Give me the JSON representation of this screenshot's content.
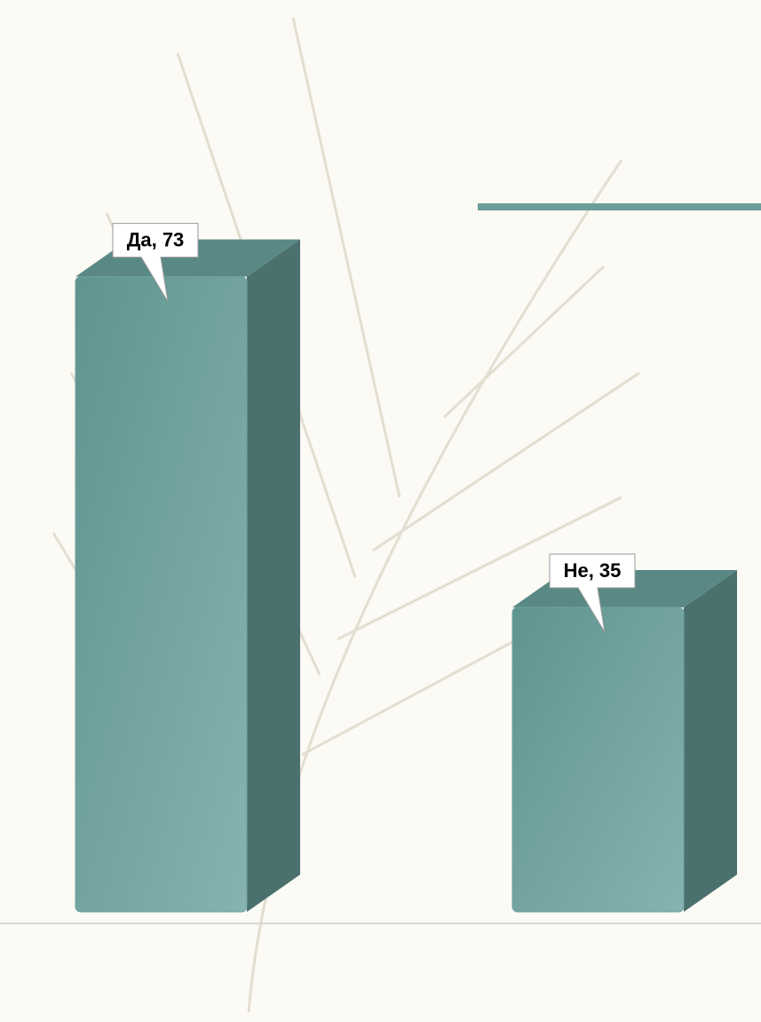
{
  "chart_data": {
    "type": "bar",
    "values": [
      73,
      35
    ],
    "value_labels": [
      "Да, 73",
      "Не, 35"
    ],
    "color": "#6fa3a0"
  }
}
